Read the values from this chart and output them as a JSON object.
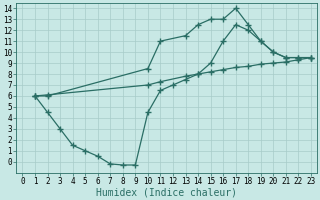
{
  "line1_x": [
    1,
    2,
    10,
    11,
    13,
    14,
    15,
    16,
    17,
    18,
    19,
    20,
    21,
    22,
    23
  ],
  "line1_y": [
    6.0,
    6.0,
    8.5,
    11.0,
    11.5,
    12.5,
    13.0,
    13.0,
    14.0,
    12.5,
    11.0,
    10.0,
    9.5,
    9.5,
    9.5
  ],
  "line2_x": [
    1,
    2,
    10,
    11,
    13,
    14,
    15,
    16,
    17,
    18,
    19,
    20,
    21,
    22,
    23
  ],
  "line2_y": [
    6.0,
    6.1,
    7.0,
    7.3,
    7.8,
    8.0,
    8.2,
    8.4,
    8.6,
    8.7,
    8.9,
    9.0,
    9.1,
    9.3,
    9.5
  ],
  "line3_x": [
    1,
    2,
    3,
    4,
    5,
    6,
    7,
    8,
    9,
    10,
    11,
    12,
    13,
    14,
    15,
    16,
    17,
    18,
    19,
    20,
    21,
    22,
    23
  ],
  "line3_y": [
    6.0,
    4.5,
    3.0,
    1.5,
    1.0,
    0.5,
    -0.2,
    -0.3,
    -0.3,
    4.5,
    6.5,
    7.0,
    7.5,
    8.0,
    9.0,
    11.0,
    12.5,
    12.0,
    11.0,
    10.0,
    9.5,
    9.5,
    9.5
  ],
  "line_color": "#2a6e65",
  "bg_color": "#c8e8e5",
  "grid_color": "#a8ccc9",
  "xlabel": "Humidex (Indice chaleur)",
  "xlim": [
    -0.5,
    23.5
  ],
  "ylim": [
    -1.0,
    14.5
  ],
  "xticks": [
    0,
    1,
    2,
    3,
    4,
    5,
    6,
    7,
    8,
    9,
    10,
    11,
    12,
    13,
    14,
    15,
    16,
    17,
    18,
    19,
    20,
    21,
    22,
    23
  ],
  "yticks": [
    0,
    1,
    2,
    3,
    4,
    5,
    6,
    7,
    8,
    9,
    10,
    11,
    12,
    13,
    14
  ],
  "marker": "+",
  "markersize": 4,
  "markeredgewidth": 1.0,
  "linewidth": 0.9,
  "xlabel_fontsize": 7,
  "tick_fontsize": 5.5
}
